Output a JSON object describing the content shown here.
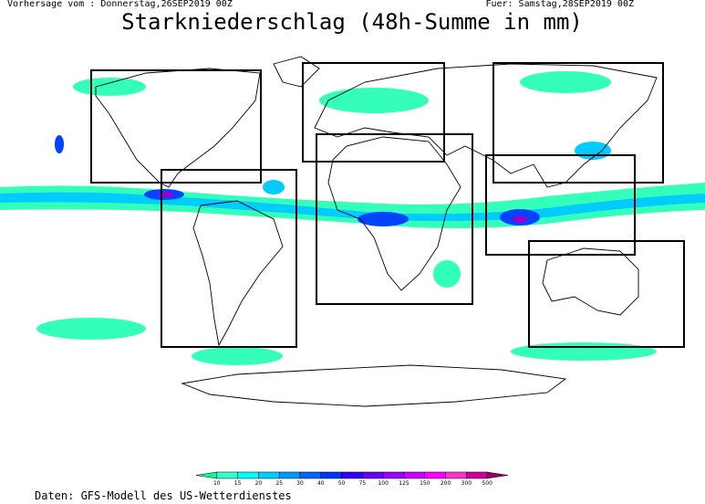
{
  "header": {
    "left": "Vorhersage vom : Donnerstag,26SEP2019 00Z",
    "right": "Fuer: Samstag,28SEP2019 00Z",
    "title": "Starkniederschlag (48h-Summe in mm)"
  },
  "legend": {
    "labels": [
      "10",
      "15",
      "20",
      "25",
      "30",
      "40",
      "50",
      "75",
      "100",
      "125",
      "150",
      "200",
      "300",
      "500"
    ],
    "colors": [
      "#00ff99",
      "#33ffcc",
      "#00ffff",
      "#00ccff",
      "#0099ff",
      "#0066ff",
      "#0033ff",
      "#3300ff",
      "#6600ff",
      "#9900ff",
      "#cc00ff",
      "#ff00ff",
      "#ff33cc",
      "#cc0099",
      "#990066"
    ]
  },
  "footer": "Daten: GFS-Modell des US-Wetterdienstes"
}
